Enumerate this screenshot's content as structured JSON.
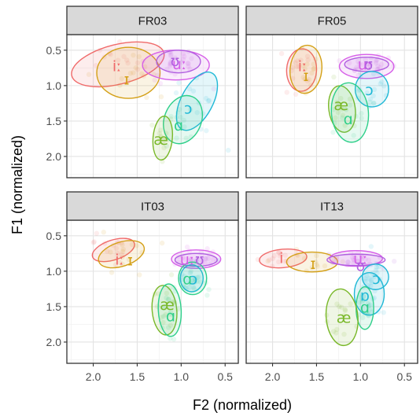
{
  "chart_data": {
    "type": "scatter",
    "subtype": "faceted vowel formant plot with 95% ellipses",
    "xlabel": "F2 (normalized)",
    "ylabel": "F1 (normalized)",
    "x_reversed": true,
    "y_reversed": true,
    "xlim": [
      2.3,
      0.35
    ],
    "ylim": [
      0.28,
      2.3
    ],
    "x_ticks": [
      2.0,
      1.5,
      1.0,
      0.5
    ],
    "x_tick_labels": [
      "2.0",
      "1.5",
      "1.0",
      "0.5"
    ],
    "y_ticks": [
      0.5,
      1.0,
      1.5,
      2.0
    ],
    "y_tick_labels": [
      "0.5",
      "1.0",
      "1.5",
      "2.0"
    ],
    "grid": true,
    "legend": "none",
    "colors": {
      "i_long": "#f06a6a",
      "I": "#d4a017",
      "ae": "#79b829",
      "a": "#2ecf8a",
      "o": "#1fb8d6",
      "u_long": "#d65ee8",
      "U": "#b15fe0"
    },
    "panels": [
      {
        "title": "FR03",
        "labels": [
          {
            "text": "iː",
            "x": 1.73,
            "y": 0.73,
            "color": "#f06a6a"
          },
          {
            "text": "ɪ",
            "x": 1.62,
            "y": 0.92,
            "color": "#d4a017"
          },
          {
            "text": "uː",
            "x": 1.02,
            "y": 0.7,
            "color": "#d65ee8"
          },
          {
            "text": "ʊ",
            "x": 1.07,
            "y": 0.66,
            "color": "#b15fe0"
          },
          {
            "text": "ɔ",
            "x": 0.92,
            "y": 1.33,
            "color": "#1fb8d6"
          },
          {
            "text": "ɑ",
            "x": 1.03,
            "y": 1.57,
            "color": "#2ecf8a"
          },
          {
            "text": "æ",
            "x": 1.23,
            "y": 1.77,
            "color": "#79b829"
          }
        ],
        "ellipses": [
          {
            "vowel": "iː",
            "cx": 1.72,
            "cy": 0.7,
            "rx": 0.54,
            "ry": 0.28,
            "angle": -14,
            "color": "#f06a6a"
          },
          {
            "vowel": "ɪ",
            "cx": 1.6,
            "cy": 0.82,
            "rx": 0.36,
            "ry": 0.36,
            "angle": 0,
            "color": "#d4a017"
          },
          {
            "vowel": "uː",
            "cx": 1.06,
            "cy": 0.71,
            "rx": 0.38,
            "ry": 0.21,
            "angle": 0,
            "color": "#d65ee8"
          },
          {
            "vowel": "ʊ",
            "cx": 1.03,
            "cy": 0.66,
            "rx": 0.25,
            "ry": 0.16,
            "angle": 0,
            "color": "#b15fe0"
          },
          {
            "vowel": "ɔ",
            "cx": 0.82,
            "cy": 1.22,
            "rx": 0.18,
            "ry": 0.45,
            "angle": 28,
            "color": "#1fb8d6"
          },
          {
            "vowel": "ɑ",
            "cx": 0.98,
            "cy": 1.48,
            "rx": 0.21,
            "ry": 0.35,
            "angle": 22,
            "color": "#2ecf8a"
          },
          {
            "vowel": "æ",
            "cx": 1.21,
            "cy": 1.74,
            "rx": 0.11,
            "ry": 0.31,
            "angle": 5,
            "color": "#79b829"
          }
        ]
      },
      {
        "title": "FR05",
        "labels": [
          {
            "text": "iː",
            "x": 1.66,
            "y": 0.73,
            "color": "#f06a6a"
          },
          {
            "text": "ɪ",
            "x": 1.62,
            "y": 0.87,
            "color": "#d4a017"
          },
          {
            "text": "uː",
            "x": 0.95,
            "y": 0.71,
            "color": "#d65ee8"
          },
          {
            "text": "ʊ",
            "x": 0.91,
            "y": 0.71,
            "color": "#b15fe0"
          },
          {
            "text": "ɔ",
            "x": 0.9,
            "y": 1.07,
            "color": "#1fb8d6"
          },
          {
            "text": "æ",
            "x": 1.22,
            "y": 1.28,
            "color": "#79b829"
          },
          {
            "text": "ɑ",
            "x": 1.14,
            "y": 1.48,
            "color": "#2ecf8a"
          }
        ],
        "ellipses": [
          {
            "vowel": "iː",
            "cx": 1.67,
            "cy": 0.78,
            "rx": 0.17,
            "ry": 0.3,
            "angle": 3,
            "color": "#f06a6a"
          },
          {
            "vowel": "ɪ",
            "cx": 1.62,
            "cy": 0.77,
            "rx": 0.18,
            "ry": 0.34,
            "angle": 6,
            "color": "#d4a017"
          },
          {
            "vowel": "uː",
            "cx": 0.93,
            "cy": 0.73,
            "rx": 0.31,
            "ry": 0.17,
            "angle": 0,
            "color": "#d65ee8"
          },
          {
            "vowel": "ʊ",
            "cx": 0.93,
            "cy": 0.7,
            "rx": 0.25,
            "ry": 0.1,
            "angle": 0,
            "color": "#b15fe0"
          },
          {
            "vowel": "ɔ",
            "cx": 0.87,
            "cy": 1.05,
            "rx": 0.19,
            "ry": 0.25,
            "angle": 0,
            "color": "#1fb8d6"
          },
          {
            "vowel": "æ",
            "cx": 1.21,
            "cy": 1.33,
            "rx": 0.15,
            "ry": 0.33,
            "angle": -8,
            "color": "#79b829"
          },
          {
            "vowel": "ɑ",
            "cx": 1.12,
            "cy": 1.38,
            "rx": 0.21,
            "ry": 0.42,
            "angle": -5,
            "color": "#2ecf8a"
          }
        ]
      },
      {
        "title": "IT03",
        "labels": [
          {
            "text": "iː",
            "x": 1.7,
            "y": 0.84,
            "color": "#f06a6a"
          },
          {
            "text": "ɪ",
            "x": 1.58,
            "y": 0.85,
            "color": "#d4a017"
          },
          {
            "text": "uː",
            "x": 0.93,
            "y": 0.84,
            "color": "#d65ee8"
          },
          {
            "text": "ʊ",
            "x": 0.79,
            "y": 0.84,
            "color": "#b15fe0"
          },
          {
            "text": "ɔ",
            "x": 0.86,
            "y": 1.12,
            "color": "#1fb8d6"
          },
          {
            "text": "ɑ",
            "x": 0.93,
            "y": 1.12,
            "color": "#2ecf8a"
          },
          {
            "text": "æ",
            "x": 1.16,
            "y": 1.48,
            "color": "#79b829"
          },
          {
            "text": "ɑ",
            "x": 1.12,
            "y": 1.64,
            "color": "#2ecf8a"
          }
        ],
        "ellipses": [
          {
            "vowel": "iː",
            "cx": 1.77,
            "cy": 0.7,
            "rx": 0.25,
            "ry": 0.14,
            "angle": -18,
            "color": "#f06a6a"
          },
          {
            "vowel": "ɪ",
            "cx": 1.68,
            "cy": 0.76,
            "rx": 0.27,
            "ry": 0.17,
            "angle": -18,
            "color": "#d4a017"
          },
          {
            "vowel": "uː",
            "cx": 0.83,
            "cy": 0.83,
            "rx": 0.28,
            "ry": 0.13,
            "angle": 0,
            "color": "#d65ee8"
          },
          {
            "vowel": "ʊ",
            "cx": 0.83,
            "cy": 0.84,
            "rx": 0.24,
            "ry": 0.09,
            "angle": 0,
            "color": "#b15fe0"
          },
          {
            "vowel": "ɔ",
            "cx": 0.88,
            "cy": 1.1,
            "rx": 0.13,
            "ry": 0.19,
            "angle": 0,
            "color": "#1fb8d6"
          },
          {
            "vowel": "ɑ",
            "cx": 0.87,
            "cy": 1.1,
            "rx": 0.16,
            "ry": 0.23,
            "angle": 0,
            "color": "#2ecf8a"
          },
          {
            "vowel": "æ",
            "cx": 1.19,
            "cy": 1.55,
            "rx": 0.14,
            "ry": 0.35,
            "angle": -5,
            "color": "#79b829"
          },
          {
            "vowel": "ɑ",
            "cx": 1.13,
            "cy": 1.55,
            "rx": 0.13,
            "ry": 0.37,
            "angle": -3,
            "color": "#2ecf8a"
          }
        ]
      },
      {
        "title": "IT13",
        "labels": [
          {
            "text": "i",
            "x": 1.9,
            "y": 0.82,
            "color": "#f06a6a"
          },
          {
            "text": "ɪ",
            "x": 1.54,
            "y": 0.9,
            "color": "#d4a017"
          },
          {
            "text": "uː",
            "x": 1.0,
            "y": 0.83,
            "color": "#d65ee8"
          },
          {
            "text": "ʊ",
            "x": 1.0,
            "y": 0.93,
            "color": "#b15fe0"
          },
          {
            "text": "ɔ",
            "x": 0.82,
            "y": 1.11,
            "color": "#1fb8d6"
          },
          {
            "text": "ɒ",
            "x": 0.95,
            "y": 1.35,
            "color": "#1fb8d6"
          },
          {
            "text": "ɑ",
            "x": 0.95,
            "y": 1.52,
            "color": "#2ecf8a"
          },
          {
            "text": "æ",
            "x": 1.19,
            "y": 1.66,
            "color": "#79b829"
          }
        ],
        "ellipses": [
          {
            "vowel": "iː",
            "cx": 1.88,
            "cy": 0.82,
            "rx": 0.27,
            "ry": 0.13,
            "angle": -5,
            "color": "#f06a6a"
          },
          {
            "vowel": "ɪ",
            "cx": 1.55,
            "cy": 0.87,
            "rx": 0.29,
            "ry": 0.14,
            "angle": 0,
            "color": "#d4a017"
          },
          {
            "vowel": "uː",
            "cx": 1.05,
            "cy": 0.82,
            "rx": 0.3,
            "ry": 0.11,
            "angle": 0,
            "color": "#d65ee8"
          },
          {
            "vowel": "ʊ",
            "cx": 1.05,
            "cy": 0.84,
            "rx": 0.33,
            "ry": 0.08,
            "angle": 0,
            "color": "#b15fe0"
          },
          {
            "vowel": "ɔ",
            "cx": 0.83,
            "cy": 1.08,
            "rx": 0.15,
            "ry": 0.18,
            "angle": 0,
            "color": "#1fb8d6"
          },
          {
            "vowel": "ɒ",
            "cx": 0.9,
            "cy": 1.32,
            "rx": 0.17,
            "ry": 0.3,
            "angle": 0,
            "color": "#1fb8d6"
          },
          {
            "vowel": "ɑ",
            "cx": 0.95,
            "cy": 1.52,
            "rx": 0.1,
            "ry": 0.3,
            "angle": 0,
            "color": "#2ecf8a"
          },
          {
            "vowel": "æ",
            "cx": 1.21,
            "cy": 1.65,
            "rx": 0.18,
            "ry": 0.4,
            "angle": -5,
            "color": "#79b829"
          }
        ]
      }
    ]
  }
}
